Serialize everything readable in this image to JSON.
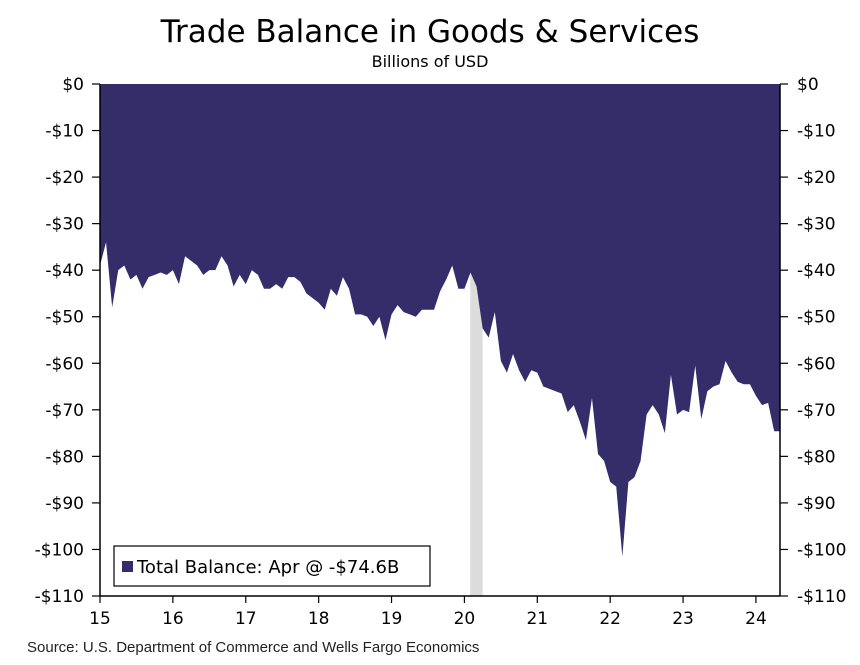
{
  "chart_data": {
    "type": "area",
    "title": "Trade Balance in Goods & Services",
    "subtitle": "Billions of USD",
    "source": "Source: U.S. Department of Commerce and Wells Fargo Economics",
    "ylim": [
      -110,
      0
    ],
    "xlim": [
      2015.0,
      2024.33
    ],
    "y_ticks": [
      0,
      -10,
      -20,
      -30,
      -40,
      -50,
      -60,
      -70,
      -80,
      -90,
      -100,
      -110
    ],
    "y_tick_labels": [
      "$0",
      "-$10",
      "-$20",
      "-$30",
      "-$40",
      "-$50",
      "-$60",
      "-$70",
      "-$80",
      "-$90",
      "-$100",
      "-$110"
    ],
    "x_ticks": [
      2015,
      2016,
      2017,
      2018,
      2019,
      2020,
      2021,
      2022,
      2023,
      2024
    ],
    "x_tick_labels": [
      "15",
      "16",
      "17",
      "18",
      "19",
      "20",
      "21",
      "22",
      "23",
      "24"
    ],
    "recession": [
      2020.08,
      2020.25
    ],
    "colors": {
      "series": "#342d69",
      "recession": "#dcdcdc",
      "axis": "#000000"
    },
    "legend": {
      "label": "Total Balance: Apr @ -$74.6B",
      "position": "bottom-left"
    },
    "series": [
      {
        "name": "Total Balance",
        "x": [
          2015.0,
          2015.083,
          2015.167,
          2015.25,
          2015.333,
          2015.417,
          2015.5,
          2015.583,
          2015.667,
          2015.75,
          2015.833,
          2015.917,
          2016.0,
          2016.083,
          2016.167,
          2016.25,
          2016.333,
          2016.417,
          2016.5,
          2016.583,
          2016.667,
          2016.75,
          2016.833,
          2016.917,
          2017.0,
          2017.083,
          2017.167,
          2017.25,
          2017.333,
          2017.417,
          2017.5,
          2017.583,
          2017.667,
          2017.75,
          2017.833,
          2017.917,
          2018.0,
          2018.083,
          2018.167,
          2018.25,
          2018.333,
          2018.417,
          2018.5,
          2018.583,
          2018.667,
          2018.75,
          2018.833,
          2018.917,
          2019.0,
          2019.083,
          2019.167,
          2019.25,
          2019.333,
          2019.417,
          2019.5,
          2019.583,
          2019.667,
          2019.75,
          2019.833,
          2019.917,
          2020.0,
          2020.083,
          2020.167,
          2020.25,
          2020.333,
          2020.417,
          2020.5,
          2020.583,
          2020.667,
          2020.75,
          2020.833,
          2020.917,
          2021.0,
          2021.083,
          2021.167,
          2021.25,
          2021.333,
          2021.417,
          2021.5,
          2021.583,
          2021.667,
          2021.75,
          2021.833,
          2021.917,
          2022.0,
          2022.083,
          2022.167,
          2022.25,
          2022.333,
          2022.417,
          2022.5,
          2022.583,
          2022.667,
          2022.75,
          2022.833,
          2022.917,
          2023.0,
          2023.083,
          2023.167,
          2023.25,
          2023.333,
          2023.417,
          2023.5,
          2023.583,
          2023.667,
          2023.75,
          2023.833,
          2023.917,
          2024.0,
          2024.083,
          2024.167,
          2024.25,
          2024.33
        ],
        "values": [
          -39,
          -34,
          -48,
          -40,
          -39,
          -42,
          -41,
          -44,
          -41.5,
          -41,
          -40.5,
          -41,
          -40,
          -43,
          -37,
          -38,
          -39,
          -41,
          -40,
          -40,
          -37,
          -39,
          -43.5,
          -41,
          -43,
          -40,
          -41,
          -44,
          -44,
          -43,
          -44,
          -41.5,
          -41.5,
          -42.5,
          -45,
          -46,
          -47,
          -48.5,
          -44,
          -45.5,
          -41.5,
          -44,
          -49.5,
          -49.5,
          -50,
          -52,
          -50,
          -55,
          -49.5,
          -47.5,
          -49,
          -49.5,
          -50,
          -48.5,
          -48.5,
          -48.5,
          -44.5,
          -42,
          -39,
          -44,
          -44,
          -40.5,
          -43.5,
          -52.5,
          -54.5,
          -49,
          -59.5,
          -62,
          -58,
          -61.5,
          -64,
          -61.5,
          -62,
          -65,
          -65.5,
          -66,
          -66.5,
          -70.5,
          -69,
          -72.5,
          -76.5,
          -67.5,
          -79.5,
          -81,
          -85.5,
          -86.5,
          -101.5,
          -85.5,
          -84.5,
          -81,
          -71,
          -69,
          -71,
          -75,
          -62.5,
          -71,
          -70,
          -70.5,
          -60.5,
          -72,
          -66,
          -65,
          -64.5,
          -59.5,
          -62,
          -64,
          -64.5,
          -64.5,
          -67,
          -69,
          -68.5,
          -74.6,
          -74.6
        ]
      }
    ]
  }
}
